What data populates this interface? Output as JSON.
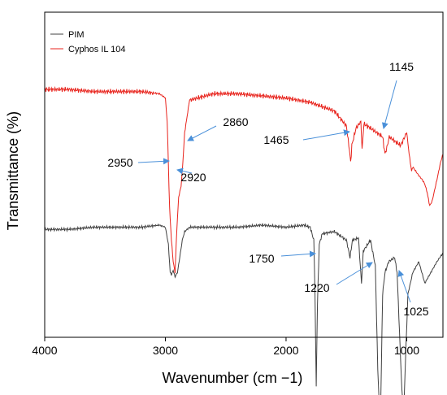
{
  "chart_data": {
    "type": "line",
    "title": "",
    "xlabel": "Wavenumber (cm −1)",
    "ylabel": "Transmittance (%)",
    "xlim": [
      4000,
      700
    ],
    "x_reversed": true,
    "xticks": [
      4000,
      3000,
      2000,
      1000
    ],
    "yticks": [],
    "grid": false,
    "legend": "top-left",
    "series": [
      {
        "name": "PIM",
        "color": "#404040",
        "points": [
          [
            4000,
            0.35
          ],
          [
            3800,
            0.35
          ],
          [
            3600,
            0.36
          ],
          [
            3400,
            0.36
          ],
          [
            3200,
            0.36
          ],
          [
            3050,
            0.37
          ],
          [
            3000,
            0.36
          ],
          [
            2975,
            0.28
          ],
          [
            2960,
            0.15
          ],
          [
            2950,
            0.14
          ],
          [
            2935,
            0.16
          ],
          [
            2920,
            0.13
          ],
          [
            2900,
            0.15
          ],
          [
            2870,
            0.26
          ],
          [
            2860,
            0.3
          ],
          [
            2840,
            0.34
          ],
          [
            2800,
            0.36
          ],
          [
            2600,
            0.36
          ],
          [
            2400,
            0.36
          ],
          [
            2200,
            0.37
          ],
          [
            2000,
            0.36
          ],
          [
            1850,
            0.37
          ],
          [
            1800,
            0.36
          ],
          [
            1770,
            0.3
          ],
          [
            1760,
            0.05
          ],
          [
            1750,
            -0.38
          ],
          [
            1740,
            0.0
          ],
          [
            1725,
            0.28
          ],
          [
            1700,
            0.33
          ],
          [
            1600,
            0.34
          ],
          [
            1500,
            0.3
          ],
          [
            1470,
            0.22
          ],
          [
            1450,
            0.3
          ],
          [
            1400,
            0.31
          ],
          [
            1375,
            0.1
          ],
          [
            1360,
            0.25
          ],
          [
            1300,
            0.3
          ],
          [
            1260,
            0.18
          ],
          [
            1240,
            -0.3
          ],
          [
            1225,
            -0.5
          ],
          [
            1215,
            -0.45
          ],
          [
            1200,
            0.05
          ],
          [
            1180,
            0.15
          ],
          [
            1150,
            0.2
          ],
          [
            1100,
            0.22
          ],
          [
            1080,
            0.15
          ],
          [
            1040,
            -0.4
          ],
          [
            1025,
            -0.5
          ],
          [
            1010,
            -0.25
          ],
          [
            990,
            0.05
          ],
          [
            950,
            0.15
          ],
          [
            900,
            0.2
          ],
          [
            850,
            0.1
          ],
          [
            800,
            0.15
          ],
          [
            750,
            0.2
          ],
          [
            700,
            0.24
          ]
        ]
      },
      {
        "name": "Cyphos IL 104",
        "color": "#e8231c",
        "points": [
          [
            4000,
            1.0
          ],
          [
            3800,
            1.0
          ],
          [
            3600,
            0.99
          ],
          [
            3400,
            0.99
          ],
          [
            3200,
            0.99
          ],
          [
            3050,
            0.98
          ],
          [
            3000,
            0.96
          ],
          [
            2985,
            0.85
          ],
          [
            2965,
            0.45
          ],
          [
            2950,
            0.3
          ],
          [
            2935,
            0.2
          ],
          [
            2920,
            0.15
          ],
          [
            2905,
            0.35
          ],
          [
            2890,
            0.5
          ],
          [
            2870,
            0.55
          ],
          [
            2860,
            0.62
          ],
          [
            2840,
            0.8
          ],
          [
            2800,
            0.95
          ],
          [
            2600,
            0.98
          ],
          [
            2400,
            0.98
          ],
          [
            2200,
            0.97
          ],
          [
            2000,
            0.96
          ],
          [
            1800,
            0.94
          ],
          [
            1600,
            0.9
          ],
          [
            1500,
            0.83
          ],
          [
            1475,
            0.72
          ],
          [
            1465,
            0.66
          ],
          [
            1455,
            0.74
          ],
          [
            1420,
            0.82
          ],
          [
            1380,
            0.85
          ],
          [
            1370,
            0.72
          ],
          [
            1355,
            0.84
          ],
          [
            1300,
            0.82
          ],
          [
            1200,
            0.78
          ],
          [
            1180,
            0.7
          ],
          [
            1160,
            0.74
          ],
          [
            1145,
            0.78
          ],
          [
            1100,
            0.76
          ],
          [
            1050,
            0.74
          ],
          [
            1000,
            0.8
          ],
          [
            980,
            0.7
          ],
          [
            960,
            0.62
          ],
          [
            950,
            0.64
          ],
          [
            900,
            0.6
          ],
          [
            870,
            0.58
          ],
          [
            850,
            0.56
          ],
          [
            830,
            0.52
          ],
          [
            810,
            0.46
          ],
          [
            790,
            0.48
          ],
          [
            750,
            0.58
          ],
          [
            720,
            0.66
          ],
          [
            700,
            0.7
          ]
        ]
      }
    ],
    "annotations": [
      {
        "label": "2950",
        "x": 2950
      },
      {
        "label": "2920",
        "x": 2920
      },
      {
        "label": "2860",
        "x": 2860
      },
      {
        "label": "1465",
        "x": 1465
      },
      {
        "label": "1145",
        "x": 1145
      },
      {
        "label": "1750",
        "x": 1750
      },
      {
        "label": "1220",
        "x": 1220
      },
      {
        "label": "1025",
        "x": 1025
      }
    ]
  }
}
